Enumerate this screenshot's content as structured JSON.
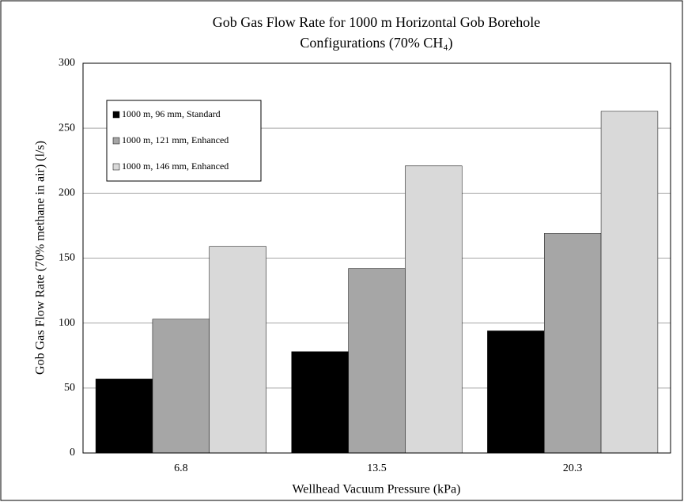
{
  "chart_data": {
    "type": "bar",
    "title": [
      "Gob Gas Flow Rate for 1000 m Horizontal Gob Borehole",
      "Configurations (70% CH₄)"
    ],
    "x_label": "Wellhead Vacuum Pressure (kPa)",
    "y_label": "Gob Gas Flow Rate (70% methane in air) (l/s)",
    "categories": [
      "6.8",
      "13.5",
      "20.3"
    ],
    "series": [
      {
        "name": "1000 m, 96 mm, Standard",
        "color": "#000000",
        "values": [
          57,
          78,
          94
        ]
      },
      {
        "name": "1000 m, 121 mm, Enhanced",
        "color": "#a6a6a6",
        "values": [
          103,
          142,
          169
        ]
      },
      {
        "name": "1000 m, 146 mm, Enhanced",
        "color": "#d9d9d9",
        "values": [
          159,
          221,
          263
        ]
      }
    ],
    "ylim": [
      0,
      300
    ],
    "yticks": [
      0,
      50,
      100,
      150,
      200,
      250,
      300
    ],
    "grid": true,
    "legend": "upper left"
  }
}
